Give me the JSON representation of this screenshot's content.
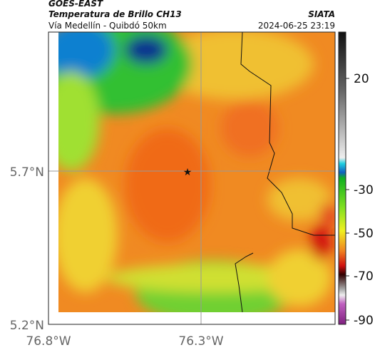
{
  "header": {
    "title": "GOES-EAST",
    "subtitle": "Temperatura de Brillo CH13",
    "location": "Vía Medellín - Quibdó 50km",
    "source": "SIATA",
    "timestamp": "2024-06-25 23:19"
  },
  "axes": {
    "y_labels": [
      "5.7°N",
      "5.2°N"
    ],
    "x_labels": [
      "76.8°W",
      "76.3°W"
    ]
  },
  "colorbar": {
    "ticks": [
      "20",
      "-30",
      "-50",
      "-70",
      "-90"
    ]
  }
}
